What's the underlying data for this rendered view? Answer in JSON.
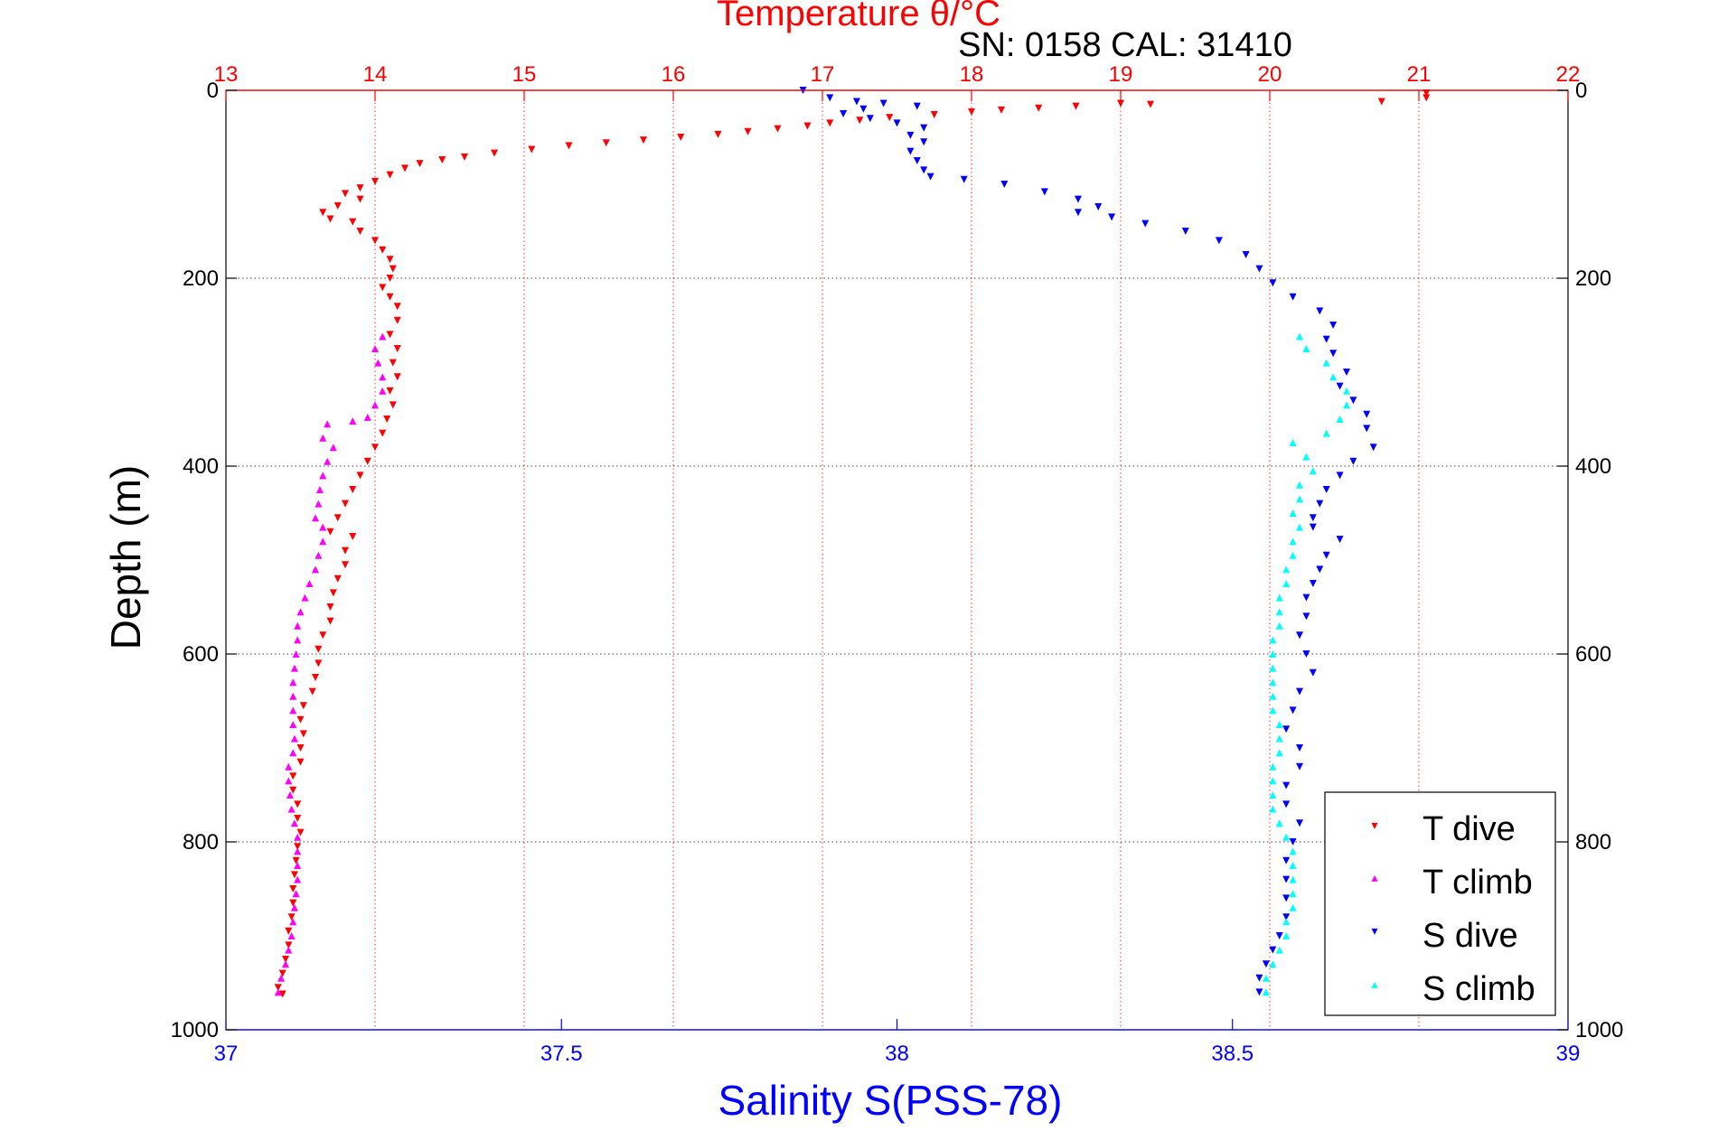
{
  "chart_data": {
    "type": "scatter",
    "title": "Temperature θ/°C",
    "subtitle": "SN: 0158  CAL: 31410",
    "ylabel": "Depth (m)",
    "xlabel": "Salinity S(PSS-78)",
    "ylim": [
      0,
      1000
    ],
    "y_reversed": true,
    "y_ticks": [
      0,
      200,
      400,
      600,
      800,
      1000
    ],
    "temperature_axis": {
      "position": "top",
      "color": "#ff0000",
      "range": [
        13,
        22
      ],
      "ticks": [
        13,
        14,
        15,
        16,
        17,
        18,
        19,
        20,
        21,
        22
      ],
      "grid": true
    },
    "salinity_axis": {
      "position": "bottom",
      "color": "#0000ff",
      "range": [
        37,
        39
      ],
      "ticks": [
        37,
        37.5,
        38,
        38.5,
        39
      ],
      "tick_labels": [
        "37",
        "37.5",
        "38",
        "38.5",
        "39"
      ]
    },
    "grid": true,
    "legend_position": "bottom-right",
    "series": [
      {
        "name": "T dive",
        "axis": "temperature",
        "color": "#ff0000",
        "marker": "triangle-down",
        "points": [
          [
            21.05,
            3
          ],
          [
            21.05,
            8
          ],
          [
            20.75,
            12
          ],
          [
            19.2,
            15
          ],
          [
            19.0,
            14
          ],
          [
            18.7,
            17
          ],
          [
            18.45,
            19
          ],
          [
            18.2,
            21
          ],
          [
            18.0,
            23
          ],
          [
            17.75,
            26
          ],
          [
            17.45,
            29
          ],
          [
            17.25,
            32
          ],
          [
            17.05,
            35
          ],
          [
            16.9,
            38
          ],
          [
            16.7,
            41
          ],
          [
            16.5,
            44
          ],
          [
            16.3,
            47
          ],
          [
            16.05,
            50
          ],
          [
            15.8,
            53
          ],
          [
            15.55,
            56
          ],
          [
            15.3,
            59
          ],
          [
            15.05,
            63
          ],
          [
            14.8,
            67
          ],
          [
            14.6,
            71
          ],
          [
            14.45,
            74
          ],
          [
            14.3,
            78
          ],
          [
            14.2,
            83
          ],
          [
            14.1,
            90
          ],
          [
            14.0,
            97
          ],
          [
            13.9,
            104
          ],
          [
            13.8,
            110
          ],
          [
            13.9,
            116
          ],
          [
            13.75,
            123
          ],
          [
            13.65,
            130
          ],
          [
            13.7,
            137
          ],
          [
            13.85,
            140
          ],
          [
            13.9,
            150
          ],
          [
            14.0,
            160
          ],
          [
            14.05,
            170
          ],
          [
            14.1,
            180
          ],
          [
            14.12,
            190
          ],
          [
            14.1,
            200
          ],
          [
            14.05,
            210
          ],
          [
            14.1,
            220
          ],
          [
            14.15,
            230
          ],
          [
            14.15,
            245
          ],
          [
            14.1,
            260
          ],
          [
            14.15,
            275
          ],
          [
            14.12,
            290
          ],
          [
            14.15,
            305
          ],
          [
            14.1,
            320
          ],
          [
            14.12,
            335
          ],
          [
            14.08,
            350
          ],
          [
            14.05,
            365
          ],
          [
            14.0,
            380
          ],
          [
            13.95,
            395
          ],
          [
            13.9,
            410
          ],
          [
            13.85,
            425
          ],
          [
            13.8,
            440
          ],
          [
            13.75,
            455
          ],
          [
            13.7,
            470
          ],
          [
            13.85,
            475
          ],
          [
            13.8,
            490
          ],
          [
            13.8,
            505
          ],
          [
            13.75,
            520
          ],
          [
            13.72,
            535
          ],
          [
            13.7,
            550
          ],
          [
            13.7,
            565
          ],
          [
            13.65,
            580
          ],
          [
            13.62,
            595
          ],
          [
            13.62,
            610
          ],
          [
            13.6,
            625
          ],
          [
            13.58,
            640
          ],
          [
            13.52,
            655
          ],
          [
            13.5,
            670
          ],
          [
            13.52,
            685
          ],
          [
            13.5,
            700
          ],
          [
            13.5,
            715
          ],
          [
            13.45,
            730
          ],
          [
            13.45,
            745
          ],
          [
            13.48,
            760
          ],
          [
            13.48,
            775
          ],
          [
            13.5,
            790
          ],
          [
            13.48,
            805
          ],
          [
            13.47,
            820
          ],
          [
            13.46,
            835
          ],
          [
            13.45,
            850
          ],
          [
            13.45,
            865
          ],
          [
            13.44,
            880
          ],
          [
            13.42,
            895
          ],
          [
            13.42,
            910
          ],
          [
            13.4,
            925
          ],
          [
            13.38,
            940
          ],
          [
            13.35,
            955
          ],
          [
            13.38,
            962
          ]
        ]
      },
      {
        "name": "T climb",
        "axis": "temperature",
        "color": "#ff00ff",
        "marker": "triangle-up",
        "points": [
          [
            13.35,
            960
          ],
          [
            13.37,
            945
          ],
          [
            13.4,
            930
          ],
          [
            13.42,
            915
          ],
          [
            13.44,
            900
          ],
          [
            13.45,
            885
          ],
          [
            13.46,
            870
          ],
          [
            13.47,
            855
          ],
          [
            13.48,
            840
          ],
          [
            13.48,
            825
          ],
          [
            13.48,
            810
          ],
          [
            13.48,
            795
          ],
          [
            13.46,
            780
          ],
          [
            13.44,
            765
          ],
          [
            13.43,
            750
          ],
          [
            13.42,
            735
          ],
          [
            13.42,
            720
          ],
          [
            13.45,
            705
          ],
          [
            13.46,
            690
          ],
          [
            13.45,
            675
          ],
          [
            13.45,
            660
          ],
          [
            13.45,
            645
          ],
          [
            13.45,
            630
          ],
          [
            13.46,
            615
          ],
          [
            13.47,
            600
          ],
          [
            13.48,
            585
          ],
          [
            13.48,
            570
          ],
          [
            13.5,
            555
          ],
          [
            13.53,
            540
          ],
          [
            13.56,
            525
          ],
          [
            13.6,
            510
          ],
          [
            13.62,
            495
          ],
          [
            13.65,
            480
          ],
          [
            13.65,
            465
          ],
          [
            13.6,
            455
          ],
          [
            13.62,
            440
          ],
          [
            13.63,
            425
          ],
          [
            13.65,
            410
          ],
          [
            13.68,
            395
          ],
          [
            13.72,
            380
          ],
          [
            13.65,
            370
          ],
          [
            13.68,
            355
          ],
          [
            13.85,
            352
          ],
          [
            13.95,
            348
          ],
          [
            14.0,
            335
          ],
          [
            14.05,
            320
          ],
          [
            14.05,
            305
          ],
          [
            14.02,
            290
          ],
          [
            14.0,
            275
          ],
          [
            14.05,
            262
          ]
        ]
      },
      {
        "name": "S dive",
        "axis": "salinity",
        "color": "#0000ff",
        "marker": "triangle-down",
        "points": [
          [
            37.86,
            0
          ],
          [
            37.9,
            8
          ],
          [
            37.94,
            12
          ],
          [
            37.98,
            14
          ],
          [
            38.03,
            17
          ],
          [
            37.95,
            20
          ],
          [
            37.92,
            25
          ],
          [
            37.96,
            30
          ],
          [
            38.0,
            35
          ],
          [
            38.04,
            40
          ],
          [
            38.02,
            48
          ],
          [
            38.04,
            55
          ],
          [
            38.02,
            65
          ],
          [
            38.03,
            75
          ],
          [
            38.04,
            85
          ],
          [
            38.05,
            92
          ],
          [
            38.1,
            95
          ],
          [
            38.16,
            100
          ],
          [
            38.22,
            108
          ],
          [
            38.27,
            116
          ],
          [
            38.3,
            124
          ],
          [
            38.27,
            130
          ],
          [
            38.32,
            135
          ],
          [
            38.37,
            142
          ],
          [
            38.43,
            150
          ],
          [
            38.48,
            160
          ],
          [
            38.52,
            175
          ],
          [
            38.54,
            190
          ],
          [
            38.56,
            205
          ],
          [
            38.59,
            220
          ],
          [
            38.63,
            235
          ],
          [
            38.65,
            250
          ],
          [
            38.64,
            265
          ],
          [
            38.65,
            280
          ],
          [
            38.67,
            300
          ],
          [
            38.66,
            315
          ],
          [
            38.68,
            330
          ],
          [
            38.7,
            345
          ],
          [
            38.7,
            360
          ],
          [
            38.71,
            380
          ],
          [
            38.68,
            395
          ],
          [
            38.66,
            410
          ],
          [
            38.64,
            425
          ],
          [
            38.63,
            440
          ],
          [
            38.62,
            455
          ],
          [
            38.62,
            465
          ],
          [
            38.66,
            478
          ],
          [
            38.64,
            495
          ],
          [
            38.63,
            510
          ],
          [
            38.62,
            525
          ],
          [
            38.61,
            540
          ],
          [
            38.61,
            560
          ],
          [
            38.6,
            580
          ],
          [
            38.61,
            600
          ],
          [
            38.62,
            620
          ],
          [
            38.6,
            640
          ],
          [
            38.59,
            660
          ],
          [
            38.58,
            680
          ],
          [
            38.6,
            700
          ],
          [
            38.6,
            720
          ],
          [
            38.58,
            740
          ],
          [
            38.58,
            760
          ],
          [
            38.6,
            780
          ],
          [
            38.59,
            800
          ],
          [
            38.58,
            820
          ],
          [
            38.58,
            840
          ],
          [
            38.58,
            860
          ],
          [
            38.58,
            880
          ],
          [
            38.57,
            900
          ],
          [
            38.56,
            915
          ],
          [
            38.55,
            930
          ],
          [
            38.54,
            945
          ],
          [
            38.54,
            960
          ]
        ]
      },
      {
        "name": "S climb",
        "axis": "salinity",
        "color": "#00ffff",
        "marker": "triangle-up",
        "points": [
          [
            38.55,
            960
          ],
          [
            38.55,
            945
          ],
          [
            38.56,
            930
          ],
          [
            38.57,
            915
          ],
          [
            38.58,
            900
          ],
          [
            38.58,
            885
          ],
          [
            38.59,
            870
          ],
          [
            38.59,
            855
          ],
          [
            38.59,
            840
          ],
          [
            38.59,
            825
          ],
          [
            38.59,
            810
          ],
          [
            38.58,
            795
          ],
          [
            38.57,
            780
          ],
          [
            38.56,
            765
          ],
          [
            38.56,
            750
          ],
          [
            38.56,
            735
          ],
          [
            38.56,
            720
          ],
          [
            38.57,
            705
          ],
          [
            38.57,
            690
          ],
          [
            38.57,
            675
          ],
          [
            38.56,
            660
          ],
          [
            38.56,
            645
          ],
          [
            38.56,
            630
          ],
          [
            38.56,
            615
          ],
          [
            38.56,
            600
          ],
          [
            38.56,
            585
          ],
          [
            38.57,
            570
          ],
          [
            38.57,
            555
          ],
          [
            38.57,
            540
          ],
          [
            38.58,
            525
          ],
          [
            38.58,
            510
          ],
          [
            38.59,
            495
          ],
          [
            38.59,
            480
          ],
          [
            38.6,
            465
          ],
          [
            38.59,
            450
          ],
          [
            38.6,
            435
          ],
          [
            38.6,
            420
          ],
          [
            38.62,
            405
          ],
          [
            38.61,
            390
          ],
          [
            38.59,
            375
          ],
          [
            38.64,
            365
          ],
          [
            38.66,
            350
          ],
          [
            38.67,
            335
          ],
          [
            38.67,
            320
          ],
          [
            38.65,
            305
          ],
          [
            38.64,
            290
          ],
          [
            38.61,
            275
          ],
          [
            38.6,
            262
          ]
        ]
      }
    ]
  }
}
